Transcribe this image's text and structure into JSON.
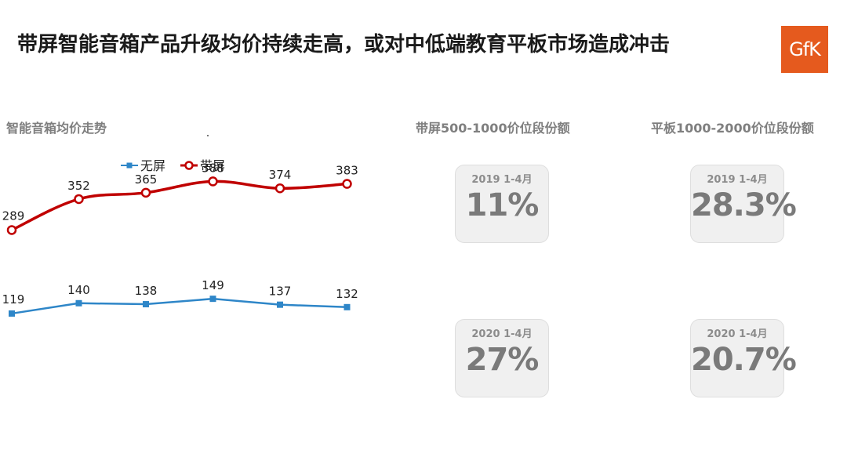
{
  "header": {
    "title": "带屏智能音箱产品升级均价持续走高，或对中低端教育平板市场造成冲击",
    "logo_text": "GfK",
    "logo_color": "#e55a1e"
  },
  "chart_data": {
    "type": "line",
    "title": "智能音箱均价走势",
    "xlabel": "",
    "ylabel": "",
    "categories": [
      "",
      "",
      "",
      "",
      "",
      ""
    ],
    "series": [
      {
        "name": "无屏",
        "color": "#2e86c8",
        "marker": "square",
        "values": [
          119,
          140,
          138,
          149,
          137,
          132
        ]
      },
      {
        "name": "带屏",
        "color": "#c00000",
        "marker": "circle",
        "values": [
          289,
          352,
          365,
          388,
          374,
          383
        ]
      }
    ],
    "legend": "top-center",
    "grid": false
  },
  "stats": {
    "col1_title": "带屏500-1000价位段份额",
    "col2_title": "平板1000-2000价位段份额",
    "cards": [
      {
        "period": "2019 1-4月",
        "value": "11%"
      },
      {
        "period": "2019 1-4月",
        "value": "28.3%"
      },
      {
        "period": "2020 1-4月",
        "value": "27%"
      },
      {
        "period": "2020 1-4月",
        "value": "20.7%"
      }
    ]
  }
}
